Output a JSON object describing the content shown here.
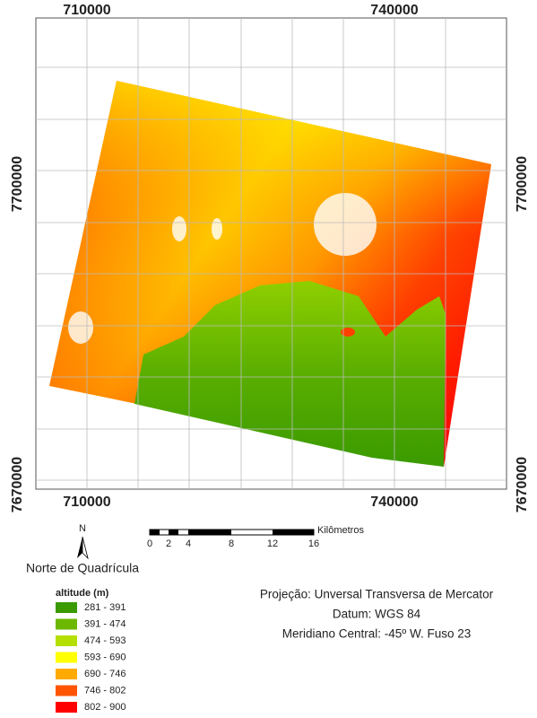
{
  "map": {
    "coordinates": {
      "top": [
        "710000",
        "740000"
      ],
      "bottom": [
        "710000",
        "740000"
      ],
      "left": [
        "7700000",
        "7670000"
      ],
      "right": [
        "7700000",
        "7670000"
      ]
    }
  },
  "scale_bar": {
    "labels": [
      "0",
      "2",
      "4",
      "8",
      "12",
      "16"
    ],
    "unit": "Kilômetros"
  },
  "north_arrow": {
    "letter": "N",
    "caption": "Norte de Quadrícula"
  },
  "legend": {
    "title": "altitude (m)",
    "items": [
      {
        "label": "281 - 391",
        "color": "#3a9a00"
      },
      {
        "label": "391 - 474",
        "color": "#6cb800"
      },
      {
        "label": "474 - 593",
        "color": "#b5df00"
      },
      {
        "label": "593 - 690",
        "color": "#ffff00"
      },
      {
        "label": "690 - 746",
        "color": "#ffaa00"
      },
      {
        "label": "746 - 802",
        "color": "#ff5500"
      },
      {
        "label": "802 - 900",
        "color": "#ff0000"
      }
    ]
  },
  "projection": [
    "Projeção: Unversal Transversa de Mercator",
    "Datum: WGS 84",
    "Meridiano Central: -45º W. Fuso 23"
  ]
}
